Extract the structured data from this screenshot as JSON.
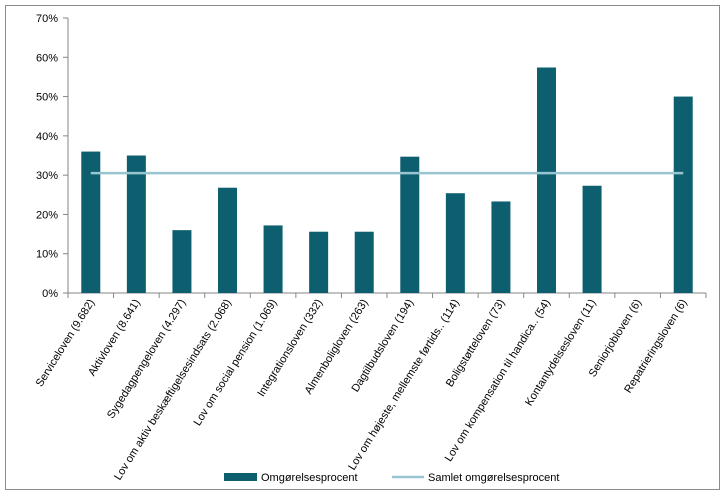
{
  "chart_data": {
    "type": "bar",
    "categories": [
      "Serviceloven (9.682)",
      "Aktivloven (8.641)",
      "Sygedagpengeloven (4.297)",
      "Lov om aktiv beskæftigelsesindsats (2.068)",
      "Lov om social pension (1.069)",
      "Integrationsloven (332)",
      "Almenboligloven (263)",
      "Dagtilbudsloven (194)",
      "Lov om højeste, mellemste førtids.. (114)",
      "Boligstøtteloven (73)",
      "Lov om kompensation til handica.. (54)",
      "Kontantydelsesloven (11)",
      "Seniorjobloven (6)",
      "Repatrieringsloven (6)"
    ],
    "series": [
      {
        "name": "Omgørelsesprocent",
        "type": "bar",
        "color": "#0d5f6f",
        "values": [
          36,
          35,
          16,
          26.8,
          17.2,
          15.6,
          15.6,
          34.7,
          25.4,
          23.3,
          57.4,
          27.3,
          0,
          50
        ]
      },
      {
        "name": "Samlet omgørelsesprocent",
        "type": "line",
        "color": "#98c5cf",
        "value": 30.5
      }
    ],
    "yticks": [
      "0%",
      "10%",
      "20%",
      "30%",
      "40%",
      "50%",
      "60%",
      "70%"
    ],
    "ylim": [
      0,
      70
    ],
    "grid": false,
    "legend_position": "bottom"
  }
}
